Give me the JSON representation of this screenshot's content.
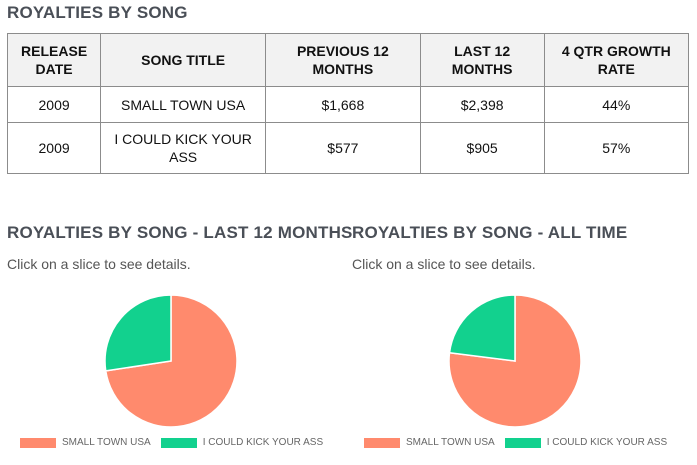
{
  "table_section": {
    "title": "ROYALTIES BY SONG",
    "columns": [
      "RELEASE DATE",
      "SONG TITLE",
      "PREVIOUS 12 MONTHS",
      "LAST 12 MONTHS",
      "4 QTR GROWTH RATE"
    ],
    "rows": [
      [
        "2009",
        "SMALL TOWN USA",
        "$1,668",
        "$2,398",
        "44%"
      ],
      [
        "2009",
        "I COULD KICK YOUR ASS",
        "$577",
        "$905",
        "57%"
      ]
    ]
  },
  "chart_data": [
    {
      "type": "pie",
      "title": "ROYALTIES BY SONG - LAST 12 MONTHS",
      "subtitle": "Click on a slice to see details.",
      "categories": [
        "SMALL TOWN USA",
        "I COULD KICK YOUR ASS"
      ],
      "values": [
        2398,
        905
      ],
      "colors": [
        "#ff8a6d",
        "#12d18e"
      ],
      "legend_position": "bottom"
    },
    {
      "type": "pie",
      "title": "ROYALTIES BY SONG - ALL TIME",
      "subtitle": "Click on a slice to see details.",
      "categories": [
        "SMALL TOWN USA",
        "I COULD KICK YOUR ASS"
      ],
      "values": [
        77,
        23
      ],
      "colors": [
        "#ff8a6d",
        "#12d18e"
      ],
      "legend_position": "bottom"
    }
  ]
}
